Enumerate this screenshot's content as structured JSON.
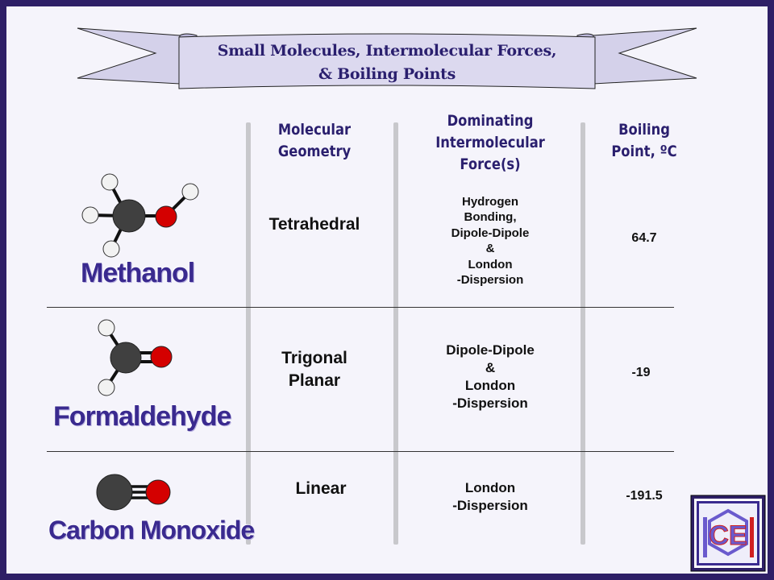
{
  "title": {
    "line1": "Small Molecules, Intermolecular Forces,",
    "line2": "& Boiling Points"
  },
  "headers": {
    "geometry": [
      "Molecular",
      "Geometry"
    ],
    "force": [
      "Dominating",
      "Intermolecular",
      "Force(s)"
    ],
    "boiling": [
      "Boiling",
      "Point, ºC"
    ]
  },
  "rows": [
    {
      "name": "Methanol",
      "geometry": [
        "Tetrahedral"
      ],
      "forces": [
        "Hydrogen",
        "Bonding,",
        "Dipole-Dipole",
        "&",
        "London",
        "-Dispersion"
      ],
      "boiling_point": "64.7"
    },
    {
      "name": "Formaldehyde",
      "geometry": [
        "Trigonal",
        "Planar"
      ],
      "forces": [
        "Dipole-Dipole",
        "&",
        "London",
        "-Dispersion"
      ],
      "boiling_point": "-19"
    },
    {
      "name": "Carbon Monoxide",
      "geometry": [
        "Linear"
      ],
      "forces": [
        "London",
        "-Dispersion"
      ],
      "boiling_point": "-191.5"
    }
  ],
  "logo": {
    "text": "CE",
    "colors": [
      "#6a5acd",
      "#d02020",
      "#f0f0f0"
    ]
  },
  "colors": {
    "frame": "#2e1f66",
    "heading": "#2a1f6e",
    "carbon": "#404040",
    "oxygen": "#d40000",
    "hydrogen": "#f2f2f2"
  }
}
